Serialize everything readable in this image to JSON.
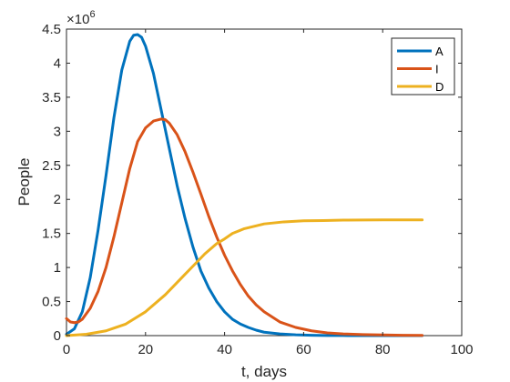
{
  "chart_data": {
    "type": "line",
    "xlabel": "t, days",
    "ylabel": "People",
    "xlim": [
      0,
      100
    ],
    "ylim": [
      0,
      4.5
    ],
    "y_multiplier_label": "×10",
    "y_multiplier_exp": "6",
    "x_ticks": [
      0,
      20,
      40,
      60,
      80,
      100
    ],
    "x_tick_labels": [
      "0",
      "20",
      "40",
      "60",
      "80",
      "100"
    ],
    "y_ticks": [
      0,
      0.5,
      1,
      1.5,
      2,
      2.5,
      3,
      3.5,
      4,
      4.5
    ],
    "y_tick_labels": [
      "0",
      "0.5",
      "1",
      "1.5",
      "2",
      "2.5",
      "3",
      "3.5",
      "4",
      "4.5"
    ],
    "grid": false,
    "legend_position": "top-right",
    "series": [
      {
        "name": "A",
        "color": "#0072BD",
        "x": [
          0,
          2,
          4,
          6,
          8,
          10,
          12,
          14,
          16,
          17,
          18,
          19,
          20,
          22,
          24,
          26,
          28,
          30,
          32,
          34,
          36,
          38,
          40,
          42,
          44,
          46,
          48,
          50,
          54,
          58,
          62,
          66,
          70,
          75,
          80,
          85,
          90
        ],
        "values": [
          0.02,
          0.1,
          0.35,
          0.85,
          1.55,
          2.35,
          3.2,
          3.9,
          4.32,
          4.41,
          4.42,
          4.38,
          4.25,
          3.85,
          3.3,
          2.75,
          2.2,
          1.72,
          1.3,
          0.95,
          0.7,
          0.5,
          0.35,
          0.24,
          0.17,
          0.12,
          0.08,
          0.05,
          0.025,
          0.012,
          0.005,
          0.002,
          0.001,
          0,
          0,
          0,
          0
        ]
      },
      {
        "name": "I",
        "color": "#D95319",
        "x": [
          0,
          1,
          2,
          3,
          4,
          6,
          8,
          10,
          12,
          14,
          16,
          18,
          20,
          22,
          24,
          25,
          26,
          28,
          30,
          32,
          34,
          36,
          38,
          40,
          42,
          44,
          46,
          48,
          50,
          54,
          58,
          62,
          66,
          70,
          75,
          80,
          85,
          90
        ],
        "values": [
          0.25,
          0.2,
          0.19,
          0.2,
          0.24,
          0.4,
          0.65,
          1.0,
          1.45,
          1.95,
          2.45,
          2.85,
          3.05,
          3.15,
          3.18,
          3.17,
          3.12,
          2.95,
          2.7,
          2.4,
          2.08,
          1.75,
          1.45,
          1.18,
          0.95,
          0.75,
          0.58,
          0.45,
          0.35,
          0.2,
          0.12,
          0.07,
          0.04,
          0.025,
          0.015,
          0.01,
          0.005,
          0.003
        ]
      },
      {
        "name": "D",
        "color": "#EDB120",
        "x": [
          0,
          5,
          10,
          15,
          20,
          25,
          28,
          30,
          32,
          35,
          38,
          40,
          42,
          45,
          50,
          55,
          60,
          65,
          70,
          75,
          80,
          85,
          90
        ],
        "values": [
          0,
          0.02,
          0.07,
          0.17,
          0.35,
          0.6,
          0.78,
          0.9,
          1.02,
          1.2,
          1.35,
          1.42,
          1.5,
          1.57,
          1.64,
          1.67,
          1.685,
          1.69,
          1.695,
          1.698,
          1.7,
          1.7,
          1.7
        ]
      }
    ]
  }
}
